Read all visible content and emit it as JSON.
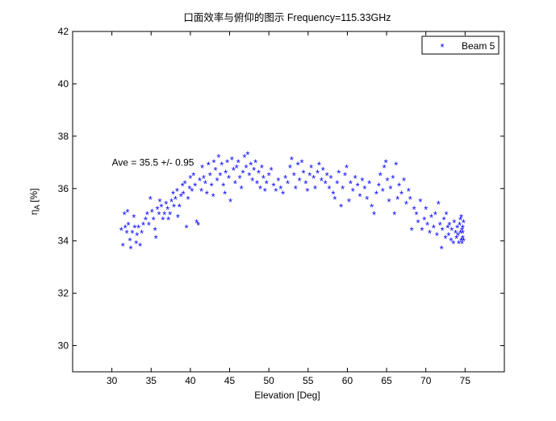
{
  "chart_data": {
    "type": "scatter",
    "title": "口面效率与俯仰的图示 Frequency=115.33GHz",
    "xlabel": "Elevation [Deg]",
    "ylabel_main": "η",
    "ylabel_sub": "A",
    "ylabel_unit": "[%]",
    "xlim": [
      25,
      80
    ],
    "ylim": [
      29,
      42
    ],
    "xticks": [
      30,
      35,
      40,
      45,
      50,
      55,
      60,
      65,
      70,
      75
    ],
    "yticks": [
      30,
      32,
      34,
      36,
      38,
      40,
      42
    ],
    "grid": false,
    "legend": {
      "position": "top-right",
      "entries": [
        {
          "marker": "*",
          "color": "#0000ff",
          "label": "Beam 5"
        }
      ]
    },
    "annotation": {
      "text": "Ave = 35.5 +/- 0.95",
      "x": 30,
      "y": 37
    },
    "series": [
      {
        "name": "Beam 5",
        "marker": "*",
        "color": "#0000ff",
        "points": [
          [
            31.2,
            34.4
          ],
          [
            31.4,
            33.8
          ],
          [
            31.6,
            35.0
          ],
          [
            31.7,
            34.5
          ],
          [
            31.9,
            34.3
          ],
          [
            32.0,
            35.1
          ],
          [
            32.1,
            34.6
          ],
          [
            32.3,
            34.0
          ],
          [
            32.4,
            33.7
          ],
          [
            32.6,
            34.3
          ],
          [
            32.8,
            34.9
          ],
          [
            32.9,
            34.5
          ],
          [
            33.1,
            33.9
          ],
          [
            33.2,
            34.2
          ],
          [
            33.4,
            34.5
          ],
          [
            33.6,
            33.8
          ],
          [
            33.8,
            34.3
          ],
          [
            34.0,
            34.6
          ],
          [
            34.3,
            34.8
          ],
          [
            34.5,
            35.0
          ],
          [
            34.7,
            34.6
          ],
          [
            34.9,
            35.6
          ],
          [
            35.1,
            35.1
          ],
          [
            35.3,
            34.8
          ],
          [
            35.5,
            34.4
          ],
          [
            35.6,
            34.1
          ],
          [
            35.8,
            35.2
          ],
          [
            36.0,
            35.0
          ],
          [
            36.1,
            35.5
          ],
          [
            36.3,
            35.3
          ],
          [
            36.5,
            34.8
          ],
          [
            36.7,
            35.0
          ],
          [
            36.9,
            35.4
          ],
          [
            37.1,
            35.2
          ],
          [
            37.2,
            34.8
          ],
          [
            37.4,
            35.0
          ],
          [
            37.6,
            35.5
          ],
          [
            37.8,
            35.8
          ],
          [
            37.9,
            35.3
          ],
          [
            38.1,
            35.6
          ],
          [
            38.3,
            35.9
          ],
          [
            38.4,
            34.9
          ],
          [
            38.6,
            35.3
          ],
          [
            38.8,
            35.7
          ],
          [
            39.0,
            36.1
          ],
          [
            39.1,
            35.8
          ],
          [
            39.3,
            36.2
          ],
          [
            39.5,
            34.5
          ],
          [
            39.7,
            35.6
          ],
          [
            39.9,
            36.0
          ],
          [
            40.0,
            36.4
          ],
          [
            40.2,
            35.9
          ],
          [
            40.4,
            36.5
          ],
          [
            40.6,
            36.1
          ],
          [
            40.8,
            34.7
          ],
          [
            41.0,
            34.6
          ],
          [
            41.2,
            36.3
          ],
          [
            41.4,
            35.9
          ],
          [
            41.5,
            36.8
          ],
          [
            41.7,
            36.4
          ],
          [
            41.9,
            36.2
          ],
          [
            42.1,
            35.8
          ],
          [
            42.3,
            36.9
          ],
          [
            42.5,
            36.5
          ],
          [
            42.7,
            36.1
          ],
          [
            42.9,
            35.7
          ],
          [
            43.0,
            37.0
          ],
          [
            43.2,
            36.7
          ],
          [
            43.4,
            36.3
          ],
          [
            43.6,
            37.2
          ],
          [
            43.8,
            36.5
          ],
          [
            44.0,
            36.9
          ],
          [
            44.2,
            36.1
          ],
          [
            44.4,
            35.8
          ],
          [
            44.5,
            36.6
          ],
          [
            44.7,
            37.0
          ],
          [
            44.9,
            36.4
          ],
          [
            45.1,
            35.5
          ],
          [
            45.3,
            37.1
          ],
          [
            45.5,
            36.7
          ],
          [
            45.7,
            36.2
          ],
          [
            45.9,
            36.8
          ],
          [
            46.1,
            37.0
          ],
          [
            46.3,
            36.4
          ],
          [
            46.5,
            36.0
          ],
          [
            46.7,
            36.6
          ],
          [
            46.9,
            37.2
          ],
          [
            47.1,
            36.8
          ],
          [
            47.3,
            37.3
          ],
          [
            47.5,
            36.5
          ],
          [
            47.7,
            36.9
          ],
          [
            47.9,
            36.3
          ],
          [
            48.1,
            36.7
          ],
          [
            48.3,
            37.0
          ],
          [
            48.5,
            36.2
          ],
          [
            48.7,
            36.6
          ],
          [
            48.9,
            36.0
          ],
          [
            49.1,
            36.8
          ],
          [
            49.3,
            36.4
          ],
          [
            49.5,
            35.9
          ],
          [
            49.7,
            36.2
          ],
          [
            50.0,
            36.5
          ],
          [
            50.3,
            36.7
          ],
          [
            50.6,
            36.1
          ],
          [
            50.9,
            35.9
          ],
          [
            51.2,
            36.3
          ],
          [
            51.5,
            36.0
          ],
          [
            51.8,
            35.8
          ],
          [
            52.1,
            36.4
          ],
          [
            52.4,
            36.2
          ],
          [
            52.7,
            36.8
          ],
          [
            52.9,
            37.1
          ],
          [
            53.2,
            36.5
          ],
          [
            53.4,
            36.0
          ],
          [
            53.7,
            36.9
          ],
          [
            53.9,
            36.3
          ],
          [
            54.2,
            37.0
          ],
          [
            54.4,
            36.6
          ],
          [
            54.7,
            36.2
          ],
          [
            54.9,
            35.9
          ],
          [
            55.2,
            36.5
          ],
          [
            55.4,
            36.8
          ],
          [
            55.7,
            36.4
          ],
          [
            55.9,
            36.0
          ],
          [
            56.2,
            36.6
          ],
          [
            56.4,
            36.9
          ],
          [
            56.7,
            36.3
          ],
          [
            56.9,
            36.7
          ],
          [
            57.2,
            36.2
          ],
          [
            57.4,
            36.5
          ],
          [
            57.7,
            36.0
          ],
          [
            57.9,
            36.4
          ],
          [
            58.2,
            35.8
          ],
          [
            58.4,
            35.6
          ],
          [
            58.7,
            36.2
          ],
          [
            58.9,
            36.6
          ],
          [
            59.2,
            35.3
          ],
          [
            59.4,
            36.0
          ],
          [
            59.7,
            36.5
          ],
          [
            59.9,
            36.8
          ],
          [
            60.2,
            35.5
          ],
          [
            60.4,
            36.2
          ],
          [
            60.7,
            35.9
          ],
          [
            61.0,
            36.4
          ],
          [
            61.3,
            36.1
          ],
          [
            61.6,
            35.7
          ],
          [
            61.9,
            36.3
          ],
          [
            62.2,
            36.0
          ],
          [
            62.5,
            35.6
          ],
          [
            62.8,
            36.2
          ],
          [
            63.1,
            35.3
          ],
          [
            63.4,
            35.0
          ],
          [
            63.7,
            35.8
          ],
          [
            64.0,
            36.1
          ],
          [
            64.2,
            36.5
          ],
          [
            64.5,
            35.9
          ],
          [
            64.7,
            36.8
          ],
          [
            64.9,
            37.0
          ],
          [
            65.1,
            36.3
          ],
          [
            65.3,
            35.5
          ],
          [
            65.5,
            36.0
          ],
          [
            65.8,
            36.4
          ],
          [
            66.0,
            35.0
          ],
          [
            66.2,
            36.9
          ],
          [
            66.4,
            35.6
          ],
          [
            66.6,
            36.1
          ],
          [
            66.9,
            35.8
          ],
          [
            67.2,
            36.3
          ],
          [
            67.5,
            35.4
          ],
          [
            67.8,
            35.9
          ],
          [
            68.0,
            35.6
          ],
          [
            68.2,
            34.4
          ],
          [
            68.5,
            35.2
          ],
          [
            68.8,
            35.0
          ],
          [
            69.0,
            34.7
          ],
          [
            69.3,
            35.5
          ],
          [
            69.5,
            34.4
          ],
          [
            69.8,
            34.8
          ],
          [
            70.0,
            35.2
          ],
          [
            70.2,
            34.6
          ],
          [
            70.5,
            34.3
          ],
          [
            70.7,
            34.9
          ],
          [
            71.0,
            34.5
          ],
          [
            71.2,
            35.0
          ],
          [
            71.4,
            34.2
          ],
          [
            71.6,
            35.4
          ],
          [
            71.8,
            34.6
          ],
          [
            72.0,
            33.7
          ],
          [
            72.1,
            34.4
          ],
          [
            72.3,
            34.8
          ],
          [
            72.5,
            34.1
          ],
          [
            72.6,
            35.0
          ],
          [
            72.8,
            34.5
          ],
          [
            72.9,
            34.2
          ],
          [
            73.0,
            34.6
          ],
          [
            73.2,
            34.0
          ],
          [
            73.3,
            34.4
          ],
          [
            73.5,
            33.9
          ],
          [
            73.6,
            34.7
          ],
          [
            73.8,
            34.3
          ],
          [
            73.9,
            34.1
          ],
          [
            74.0,
            34.5
          ],
          [
            74.1,
            34.2
          ],
          [
            74.2,
            33.9
          ],
          [
            74.3,
            34.6
          ],
          [
            74.4,
            34.3
          ],
          [
            74.5,
            34.0
          ],
          [
            74.6,
            34.4
          ],
          [
            74.7,
            34.1
          ],
          [
            74.8,
            34.7
          ],
          [
            74.6,
            33.9
          ],
          [
            74.7,
            34.3
          ],
          [
            74.5,
            34.9
          ],
          [
            74.8,
            34.0
          ],
          [
            74.4,
            34.8
          ],
          [
            74.7,
            34.5
          ]
        ]
      }
    ]
  }
}
